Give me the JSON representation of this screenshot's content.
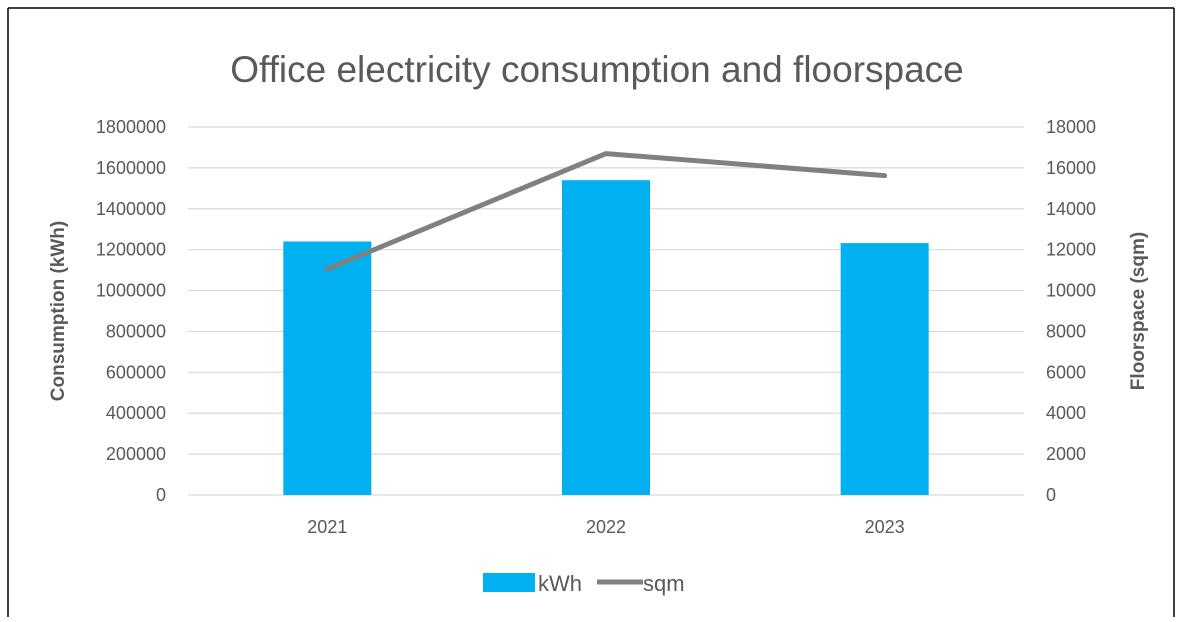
{
  "chart_data": {
    "type": "bar",
    "title": "Office electricity consumption and floorspace",
    "categories": [
      "2021",
      "2022",
      "2023"
    ],
    "series": [
      {
        "name": "kWh",
        "type": "bar",
        "axis": "left",
        "color": "#00b0f0",
        "values": [
          1240000,
          1540000,
          1232000
        ]
      },
      {
        "name": "sqm",
        "type": "line",
        "axis": "right",
        "color": "#808080",
        "values": [
          11050,
          16700,
          15620
        ]
      }
    ],
    "ylabel": "Consumption (kWh)",
    "ylabel_right": "Floorspace (sqm)",
    "ylim": [
      0,
      1800000
    ],
    "ylim_right": [
      0,
      18000
    ],
    "yticks": [
      "0",
      "200000",
      "400000",
      "600000",
      "800000",
      "1000000",
      "1200000",
      "1400000",
      "1600000",
      "1800000"
    ],
    "yticks_right": [
      "0",
      "2000",
      "4000",
      "6000",
      "8000",
      "10000",
      "12000",
      "14000",
      "16000",
      "18000"
    ],
    "grid": true,
    "legend": "bottom",
    "gridline_color": "#d9d9d9"
  }
}
